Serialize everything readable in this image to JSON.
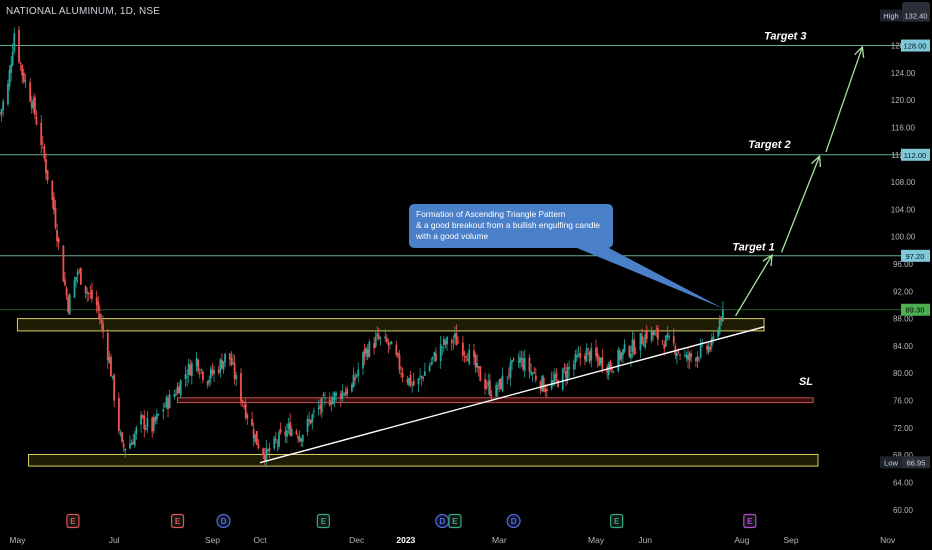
{
  "header": {
    "title": "NATIONAL ALUMINUM, 1D, NSE"
  },
  "chart_data": {
    "type": "candlestick",
    "symbol_title": "NATIONAL ALUMINUM, 1D, NSE",
    "y_axis": {
      "range": [
        58.5,
        133.5
      ],
      "ticks": [
        "60.00",
        "64.00",
        "68.00",
        "72.00",
        "76.00",
        "80.00",
        "84.00",
        "88.00",
        "92.00",
        "96.00",
        "100.00",
        "104.00",
        "108.00",
        "112.00",
        "116.00",
        "120.00",
        "124.00",
        "128.00",
        "132.40"
      ]
    },
    "x_axis": {
      "range": [
        "2022-04-20",
        "2023-11-10"
      ],
      "ticks": [
        {
          "date": "2022-05-01",
          "label": "May",
          "bold": false
        },
        {
          "date": "2022-07-01",
          "label": "Jul",
          "bold": false
        },
        {
          "date": "2022-09-01",
          "label": "Sep",
          "bold": false
        },
        {
          "date": "2022-10-01",
          "label": "Oct",
          "bold": false
        },
        {
          "date": "2022-12-01",
          "label": "Dec",
          "bold": false
        },
        {
          "date": "2023-01-01",
          "label": "2023",
          "bold": true
        },
        {
          "date": "2023-03-01",
          "label": "Mar",
          "bold": false
        },
        {
          "date": "2023-05-01",
          "label": "May",
          "bold": false
        },
        {
          "date": "2023-06-01",
          "label": "Jun",
          "bold": false
        },
        {
          "date": "2023-08-01",
          "label": "Aug",
          "bold": false
        },
        {
          "date": "2023-09-01",
          "label": "Sep",
          "bold": false
        },
        {
          "date": "2023-11-01",
          "label": "Nov",
          "bold": false
        }
      ]
    },
    "price_path": [
      [
        "2022-04-20",
        118
      ],
      [
        "2022-04-25",
        122
      ],
      [
        "2022-04-29",
        130
      ],
      [
        "2022-05-04",
        124
      ],
      [
        "2022-05-10",
        120
      ],
      [
        "2022-05-16",
        114
      ],
      [
        "2022-05-19",
        110
      ],
      [
        "2022-05-24",
        104
      ],
      [
        "2022-05-28",
        97
      ],
      [
        "2022-06-02",
        90
      ],
      [
        "2022-06-08",
        95
      ],
      [
        "2022-06-14",
        92
      ],
      [
        "2022-06-20",
        90
      ],
      [
        "2022-06-24",
        86
      ],
      [
        "2022-06-28",
        82
      ],
      [
        "2022-07-02",
        75
      ],
      [
        "2022-07-06",
        69
      ],
      [
        "2022-07-12",
        70
      ],
      [
        "2022-07-18",
        73
      ],
      [
        "2022-07-25",
        72
      ],
      [
        "2022-08-01",
        75
      ],
      [
        "2022-08-08",
        77
      ],
      [
        "2022-08-15",
        80
      ],
      [
        "2022-08-22",
        82
      ],
      [
        "2022-08-28",
        79
      ],
      [
        "2022-09-05",
        81
      ],
      [
        "2022-09-11",
        83
      ],
      [
        "2022-09-17",
        78
      ],
      [
        "2022-09-23",
        74
      ],
      [
        "2022-09-29",
        70
      ],
      [
        "2022-10-05",
        68
      ],
      [
        "2022-10-12",
        70
      ],
      [
        "2022-10-20",
        72
      ],
      [
        "2022-10-27",
        71
      ],
      [
        "2022-11-04",
        74
      ],
      [
        "2022-11-12",
        76
      ],
      [
        "2022-11-20",
        77
      ],
      [
        "2022-11-28",
        78
      ],
      [
        "2022-12-06",
        83
      ],
      [
        "2022-12-14",
        85
      ],
      [
        "2022-12-22",
        84
      ],
      [
        "2022-12-30",
        80
      ],
      [
        "2023-01-07",
        78
      ],
      [
        "2023-01-15",
        81
      ],
      [
        "2023-01-24",
        84
      ],
      [
        "2023-02-01",
        85
      ],
      [
        "2023-02-09",
        83
      ],
      [
        "2023-02-18",
        79
      ],
      [
        "2023-02-26",
        77
      ],
      [
        "2023-03-06",
        80
      ],
      [
        "2023-03-14",
        82
      ],
      [
        "2023-03-22",
        80
      ],
      [
        "2023-03-30",
        78
      ],
      [
        "2023-04-07",
        79
      ],
      [
        "2023-04-15",
        81
      ],
      [
        "2023-04-24",
        83
      ],
      [
        "2023-05-02",
        82
      ],
      [
        "2023-05-10",
        81
      ],
      [
        "2023-05-18",
        83
      ],
      [
        "2023-05-26",
        84
      ],
      [
        "2023-06-03",
        86
      ],
      [
        "2023-06-11",
        85
      ],
      [
        "2023-06-19",
        84
      ],
      [
        "2023-06-27",
        82
      ],
      [
        "2023-07-05",
        83
      ],
      [
        "2023-07-13",
        84
      ],
      [
        "2023-07-20",
        89.3
      ]
    ],
    "price_labels": [
      {
        "label": "High",
        "value": "132.40",
        "price": 132.4,
        "style": "gray"
      },
      {
        "value": "128.00",
        "price": 128.0,
        "style": "cyan"
      },
      {
        "value": "112.00",
        "price": 112.0,
        "style": "cyan"
      },
      {
        "value": "97.20",
        "price": 97.2,
        "style": "cyan"
      },
      {
        "value": "89.30",
        "price": 89.3,
        "style": "green"
      },
      {
        "label": "Low",
        "value": "66.95",
        "price": 66.95,
        "style": "gray"
      }
    ],
    "levels": [
      {
        "price": 128.0,
        "label": "Target 3",
        "color": "#7ec8b6"
      },
      {
        "price": 112.0,
        "label": "Target 2",
        "color": "#7ec8b6"
      },
      {
        "price": 97.2,
        "label": "Target 1",
        "color": "#7ec8b6"
      },
      {
        "price": 89.3,
        "label": "",
        "color": "#2f6d3a"
      }
    ],
    "zones": [
      {
        "name": "resistance",
        "y_range": [
          86.2,
          88.0
        ],
        "x_range": [
          "2022-05-01",
          "2023-08-15"
        ],
        "border": "#d8d064",
        "fill": "rgba(120,110,10,0.25)"
      },
      {
        "name": "stop-loss",
        "y_range": [
          75.7,
          76.4
        ],
        "x_range": [
          "2022-08-10",
          "2023-09-15"
        ],
        "border": "#c0504d",
        "fill": "rgba(160,40,40,0.35)"
      },
      {
        "name": "support",
        "y_range": [
          66.4,
          68.1
        ],
        "x_range": [
          "2022-05-08",
          "2023-09-18"
        ],
        "border": "#d8d064",
        "fill": "rgba(120,110,10,0.25)"
      }
    ],
    "trendline": {
      "from": [
        "2022-10-01",
        66.9
      ],
      "to": [
        "2023-08-15",
        86.8
      ],
      "color": "#ffffff"
    },
    "arrows": [
      {
        "from": [
          "2023-07-28",
          88.4
        ],
        "to": [
          "2023-08-20",
          97.3
        ]
      },
      {
        "from": [
          "2023-08-26",
          97.7
        ],
        "to": [
          "2023-09-19",
          111.8
        ]
      },
      {
        "from": [
          "2023-09-23",
          112.4
        ],
        "to": [
          "2023-10-16",
          127.8
        ]
      }
    ],
    "annotations": [
      {
        "text": "Target 3",
        "date": "2023-08-15",
        "price": 128.9
      },
      {
        "text": "Target 2",
        "date": "2023-08-05",
        "price": 113.0
      },
      {
        "text": "Target 1",
        "date": "2023-07-26",
        "price": 98.0
      },
      {
        "text": "SL",
        "date": "2023-09-06",
        "price": 78.3
      }
    ],
    "callout": {
      "lines": [
        "Formation of Ascending Triangle Pattern",
        "& a good breakout from a bullish engulfing candle",
        "with a good volume"
      ],
      "pointer_to": [
        "2023-07-20",
        89.5
      ]
    },
    "events": [
      {
        "date": "2022-06-05",
        "letter": "E",
        "color": "#e0554f"
      },
      {
        "date": "2022-08-10",
        "letter": "E",
        "color": "#e0554f"
      },
      {
        "date": "2022-09-08",
        "letter": "D",
        "color": "#4f6de0"
      },
      {
        "date": "2022-11-10",
        "letter": "E",
        "color": "#2faa80"
      },
      {
        "date": "2023-01-24",
        "letter": "D",
        "color": "#4f6de0"
      },
      {
        "date": "2023-02-01",
        "letter": "E",
        "color": "#2faa80"
      },
      {
        "date": "2023-03-10",
        "letter": "D",
        "color": "#4f6de0"
      },
      {
        "date": "2023-05-14",
        "letter": "E",
        "color": "#2faa80"
      },
      {
        "date": "2023-08-06",
        "letter": "E",
        "color": "#b84ad8"
      }
    ],
    "colors": {
      "up": "#26a69a",
      "down": "#ef5350",
      "background": "#000000"
    }
  }
}
